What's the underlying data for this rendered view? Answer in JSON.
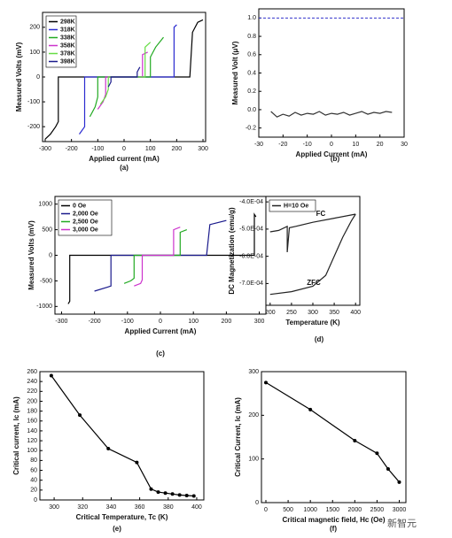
{
  "chart_data": [
    {
      "type": "line",
      "caption": "(a)",
      "x_label": "Applied current (mA)",
      "y_label": "Measured Volts (mV)",
      "xlim": [
        -310,
        310
      ],
      "xticks": [
        -300,
        -200,
        -100,
        0,
        100,
        200,
        300
      ],
      "ylim": [
        -260,
        260
      ],
      "yticks": [
        -200,
        -100,
        0,
        100,
        200
      ],
      "series": [
        {
          "name": "298K",
          "color": "#000000",
          "x": [
            -300,
            -280,
            -260,
            -250,
            -250,
            250,
            260,
            280,
            300
          ],
          "values": [
            -250,
            -230,
            -200,
            -180,
            0,
            0,
            180,
            220,
            230
          ]
        },
        {
          "name": "318K",
          "color": "#2b2bd0",
          "x": [
            -170,
            -150,
            -150,
            190,
            190,
            200
          ],
          "values": [
            -230,
            -200,
            0,
            0,
            200,
            210
          ]
        },
        {
          "name": "338K",
          "color": "#22aa22",
          "x": [
            -130,
            -110,
            -100,
            -100,
            100,
            100,
            120,
            150
          ],
          "values": [
            -160,
            -120,
            -80,
            0,
            0,
            80,
            120,
            160
          ]
        },
        {
          "name": "358K",
          "color": "#cc33cc",
          "x": [
            -100,
            -80,
            -70,
            -70,
            70,
            70,
            90
          ],
          "values": [
            -130,
            -100,
            -70,
            0,
            0,
            90,
            100
          ]
        },
        {
          "name": "378K",
          "color": "#66dd44",
          "x": [
            -90,
            -70,
            -60,
            -60,
            80,
            80,
            100
          ],
          "values": [
            -110,
            -80,
            -50,
            0,
            0,
            120,
            140
          ]
        },
        {
          "name": "398K",
          "color": "#1a1a8c",
          "x": [
            -60,
            -50,
            -50,
            50,
            50,
            60
          ],
          "values": [
            -40,
            -20,
            0,
            0,
            20,
            40
          ]
        }
      ],
      "legend": "upper left"
    },
    {
      "type": "line",
      "caption": "(b)",
      "x_label": "Applied Current (mA)",
      "y_label": "Measured Volt (μV)",
      "xlim": [
        -30,
        30
      ],
      "xticks": [
        -30,
        -20,
        -10,
        0,
        10,
        20,
        30
      ],
      "ylim": [
        -0.3,
        1.1
      ],
      "yticks": [
        -0.2,
        {
          "value": 0,
          "label": "0.0"
        },
        0.2,
        0.4,
        0.6,
        0.8,
        {
          "value": 1,
          "label": "1.0"
        }
      ],
      "hline": 1.0,
      "hline_color": "#3333cc",
      "series": [
        {
          "color": "#333333",
          "x": [
            -25,
            -22.5,
            -20,
            -17.5,
            -15,
            -12.5,
            -10,
            -7.5,
            -5,
            -2.5,
            0,
            2.5,
            5,
            7.5,
            10,
            12.5,
            15,
            17.5,
            20,
            22.5,
            25
          ],
          "values": [
            -0.02,
            -0.08,
            -0.05,
            -0.07,
            -0.03,
            -0.06,
            -0.04,
            -0.05,
            -0.02,
            -0.06,
            -0.04,
            -0.05,
            -0.03,
            -0.06,
            -0.04,
            -0.02,
            -0.05,
            -0.03,
            -0.04,
            -0.02,
            -0.03
          ]
        }
      ]
    },
    {
      "type": "line",
      "caption": "(c)",
      "x_label": "Applied Current (mA)",
      "y_label": "Measured Volts (mV)",
      "xlim": [
        -320,
        320
      ],
      "xticks": [
        -300,
        -200,
        -100,
        0,
        100,
        200,
        300
      ],
      "ylim": [
        -1150,
        1150
      ],
      "yticks": [
        -1000,
        -500,
        0,
        500,
        1000
      ],
      "series": [
        {
          "name": "0 Oe",
          "color": "#000000",
          "x": [
            -280,
            -275,
            -275,
            285,
            285,
            290
          ],
          "values": [
            -950,
            -900,
            0,
            0,
            800,
            750
          ]
        },
        {
          "name": "2,000 Oe",
          "color": "#1a1a8c",
          "x": [
            -200,
            -160,
            -150,
            -150,
            140,
            150,
            200
          ],
          "values": [
            -700,
            -620,
            -600,
            0,
            0,
            600,
            680
          ]
        },
        {
          "name": "2,500 Oe",
          "color": "#22aa22",
          "x": [
            -110,
            -90,
            -80,
            -80,
            60,
            60,
            80
          ],
          "values": [
            -550,
            -500,
            -450,
            0,
            0,
            450,
            500
          ]
        },
        {
          "name": "3,000 Oe",
          "color": "#cc33cc",
          "x": [
            -80,
            -60,
            -55,
            -55,
            40,
            40,
            60
          ],
          "values": [
            -600,
            -550,
            -480,
            0,
            0,
            500,
            550
          ]
        }
      ],
      "legend": "upper left"
    },
    {
      "type": "line",
      "caption": "(d)",
      "x_label": "Temperature (K)",
      "y_label": "DC Magnetization (emu/g)",
      "xlim": [
        190,
        410
      ],
      "xticks": [
        200,
        250,
        300,
        350,
        400
      ],
      "ylim": [
        -0.00078,
        -0.00038
      ],
      "yticks": [
        {
          "value": -0.0004,
          "label": "-4.0E-04"
        },
        {
          "value": -0.0005,
          "label": "-5.0E-04"
        },
        {
          "value": -0.0006,
          "label": "-6.0E-04"
        },
        {
          "value": -0.0007,
          "label": "-7.0E-04"
        }
      ],
      "annotations": [
        "FC",
        "ZFC"
      ],
      "series": [
        {
          "name": "H=10 Oe",
          "color": "#222222",
          "x": [
            200,
            220,
            240,
            240,
            245,
            260,
            300,
            350,
            400,
            null,
            200,
            250,
            300,
            330,
            350,
            370,
            390,
            400
          ],
          "values": [
            -0.00051,
            -0.000505,
            -0.00049,
            -0.000585,
            -0.000495,
            -0.00049,
            -0.000475,
            -0.00046,
            -0.000445,
            null,
            -0.00074,
            -0.00073,
            -0.00071,
            -0.00067,
            -0.0006,
            -0.00053,
            -0.00047,
            -0.000445
          ]
        }
      ],
      "legend": "upper left"
    },
    {
      "type": "line",
      "caption": "(e)",
      "x_label": "Critical Temperature, Tc (K)",
      "y_label": "Critical current, Ic (mA)",
      "xlim": [
        290,
        405
      ],
      "xticks": [
        300,
        320,
        340,
        360,
        380,
        400
      ],
      "ylim": [
        0,
        260
      ],
      "yticks": [
        0,
        20,
        40,
        60,
        80,
        100,
        120,
        140,
        160,
        180,
        200,
        220,
        240,
        260
      ],
      "markers": true,
      "series": [
        {
          "color": "#000000",
          "x": [
            298,
            318,
            338,
            358,
            368,
            373,
            378,
            383,
            388,
            393,
            398
          ],
          "values": [
            252,
            172,
            104,
            76,
            22,
            16,
            14,
            12,
            10,
            9,
            8
          ]
        }
      ]
    },
    {
      "type": "line",
      "caption": "(f)",
      "x_label": "Critical magnetic field, Hc (Oe)",
      "y_label": "Critical Current, Ic (mA)",
      "xlim": [
        -100,
        3150
      ],
      "xticks": [
        0,
        500,
        1000,
        1500,
        2000,
        2500,
        3000
      ],
      "ylim": [
        0,
        300
      ],
      "yticks": [
        0,
        100,
        200,
        300
      ],
      "markers": true,
      "watermark": "新智元",
      "series": [
        {
          "color": "#000000",
          "x": [
            0,
            1000,
            2000,
            2500,
            2750,
            3000
          ],
          "values": [
            275,
            213,
            142,
            113,
            77,
            47
          ]
        }
      ]
    }
  ]
}
